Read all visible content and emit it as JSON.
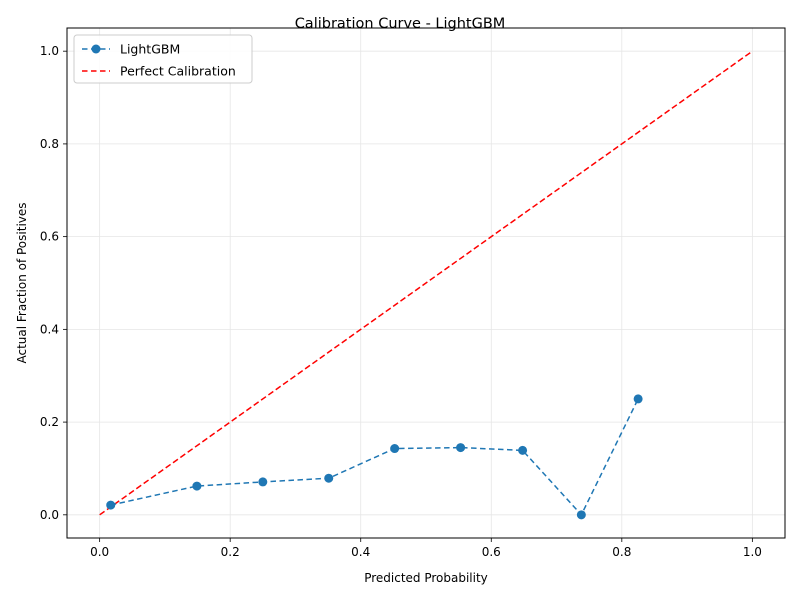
{
  "chart_data": {
    "type": "line",
    "title": "Calibration Curve - LightGBM",
    "xlabel": "Predicted Probability",
    "ylabel": "Actual Fraction of Positives",
    "xlim": [
      -0.05,
      1.05
    ],
    "ylim": [
      -0.05,
      1.05
    ],
    "xticks": [
      "0.0",
      "0.2",
      "0.4",
      "0.6",
      "0.8",
      "1.0"
    ],
    "yticks": [
      "0.0",
      "0.2",
      "0.4",
      "0.6",
      "0.8",
      "1.0"
    ],
    "grid": true,
    "legend_position": "top-left",
    "series": [
      {
        "name": "LightGBM",
        "color": "#1f77b4",
        "style": "dashed",
        "marker": "circle",
        "x": [
          0.017,
          0.149,
          0.25,
          0.351,
          0.452,
          0.553,
          0.648,
          0.738,
          0.825
        ],
        "y": [
          0.021,
          0.062,
          0.071,
          0.079,
          0.143,
          0.145,
          0.139,
          0.0,
          0.25
        ]
      },
      {
        "name": "Perfect Calibration",
        "color": "#ff0000",
        "style": "dashed",
        "marker": "none",
        "x": [
          0.0,
          1.0
        ],
        "y": [
          0.0,
          1.0
        ]
      }
    ]
  }
}
